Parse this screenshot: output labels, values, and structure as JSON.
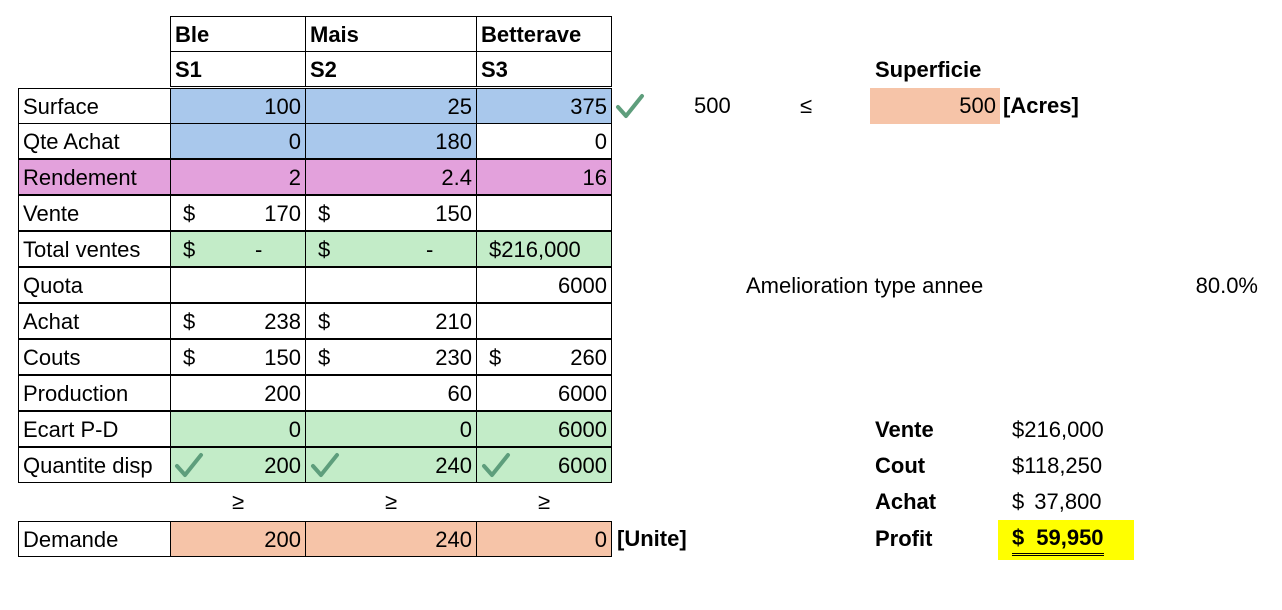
{
  "headers": {
    "crops": [
      "Ble",
      "Mais",
      "Betterave"
    ],
    "vars": [
      "S1",
      "S2",
      "S3"
    ],
    "superficie": "Superficie"
  },
  "rows": {
    "surface": {
      "label": "Surface",
      "v": [
        "100",
        "25",
        "375"
      ]
    },
    "qte_achat": {
      "label": "Qte Achat",
      "v": [
        "0",
        "180",
        "0"
      ]
    },
    "rendement": {
      "label": "Rendement",
      "v": [
        "2",
        "2.4",
        "16"
      ]
    },
    "vente": {
      "label": "Vente",
      "v": [
        "170",
        "150",
        ""
      ]
    },
    "total_ventes": {
      "label": "Total ventes",
      "v": [
        "-",
        "-",
        "216,000"
      ]
    },
    "quota": {
      "label": "Quota",
      "v": [
        "",
        "",
        "6000"
      ]
    },
    "achat": {
      "label": "Achat",
      "v": [
        "238",
        "210",
        ""
      ]
    },
    "couts": {
      "label": "Couts",
      "v": [
        "150",
        "230",
        "260"
      ]
    },
    "production": {
      "label": "Production",
      "v": [
        "200",
        "60",
        "6000"
      ]
    },
    "ecart": {
      "label": "Ecart P-D",
      "v": [
        "0",
        "0",
        "6000"
      ]
    },
    "quantite_disp": {
      "label": "Quantite disp",
      "v": [
        "200",
        "240",
        "6000"
      ]
    },
    "demande": {
      "label": "Demande",
      "v": [
        "200",
        "240",
        "0"
      ]
    }
  },
  "currency": "$",
  "ge_symbol": "≥",
  "le_symbol": "≤",
  "units": {
    "demande": "[Unite]",
    "acres": "[Acres]"
  },
  "surface_constraint": {
    "total": "500",
    "limit": "500"
  },
  "amelioration": {
    "label": "Amelioration type annee",
    "value": "80.0%"
  },
  "summary": {
    "vente": {
      "label": "Vente",
      "value": "216,000"
    },
    "cout": {
      "label": "Cout",
      "value": "118,250"
    },
    "achat": {
      "label": "Achat",
      "value": "37,800"
    },
    "profit": {
      "label": "Profit",
      "value": "59,950"
    }
  },
  "icons": {
    "check": "check-icon"
  },
  "colors": {
    "decision": "#a9c8ec",
    "rendement": "#e3a1dc",
    "computed": "#c3ecc8",
    "input": "#f6c4a8",
    "highlight": "#ffff00",
    "check": "#5e9e7c"
  }
}
